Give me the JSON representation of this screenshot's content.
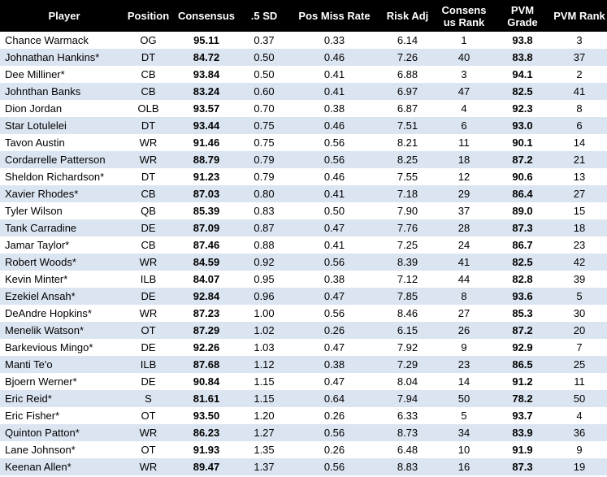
{
  "headers": {
    "player": "Player",
    "position": "Position",
    "consensus": "Consensus",
    "sd": ".5 SD",
    "pos_miss_rate": "Pos Miss Rate",
    "risk_adj": "Risk Adj",
    "consensus_rank_line1": "Consens",
    "consensus_rank_line2": "us Rank",
    "pvm_grade_line1": "PVM",
    "pvm_grade_line2": "Grade",
    "pvm_rank": "PVM Rank"
  },
  "rows": [
    {
      "player": "Chance Warmack",
      "position": "OG",
      "consensus": "95.11",
      "sd": "0.37",
      "pos_miss_rate": "0.33",
      "risk_adj": "6.14",
      "consensus_rank": "1",
      "pvm_grade": "93.8",
      "pvm_rank": "3"
    },
    {
      "player": "Johnathan Hankins*",
      "position": "DT",
      "consensus": "84.72",
      "sd": "0.50",
      "pos_miss_rate": "0.46",
      "risk_adj": "7.26",
      "consensus_rank": "40",
      "pvm_grade": "83.8",
      "pvm_rank": "37"
    },
    {
      "player": "Dee Milliner*",
      "position": "CB",
      "consensus": "93.84",
      "sd": "0.50",
      "pos_miss_rate": "0.41",
      "risk_adj": "6.88",
      "consensus_rank": "3",
      "pvm_grade": "94.1",
      "pvm_rank": "2"
    },
    {
      "player": "Johnthan Banks",
      "position": "CB",
      "consensus": "83.24",
      "sd": "0.60",
      "pos_miss_rate": "0.41",
      "risk_adj": "6.97",
      "consensus_rank": "47",
      "pvm_grade": "82.5",
      "pvm_rank": "41"
    },
    {
      "player": "Dion Jordan",
      "position": "OLB",
      "consensus": "93.57",
      "sd": "0.70",
      "pos_miss_rate": "0.38",
      "risk_adj": "6.87",
      "consensus_rank": "4",
      "pvm_grade": "92.3",
      "pvm_rank": "8"
    },
    {
      "player": "Star Lotulelei",
      "position": "DT",
      "consensus": "93.44",
      "sd": "0.75",
      "pos_miss_rate": "0.46",
      "risk_adj": "7.51",
      "consensus_rank": "6",
      "pvm_grade": "93.0",
      "pvm_rank": "6"
    },
    {
      "player": "Tavon Austin",
      "position": "WR",
      "consensus": "91.46",
      "sd": "0.75",
      "pos_miss_rate": "0.56",
      "risk_adj": "8.21",
      "consensus_rank": "11",
      "pvm_grade": "90.1",
      "pvm_rank": "14"
    },
    {
      "player": "Cordarrelle Patterson",
      "position": "WR",
      "consensus": "88.79",
      "sd": "0.79",
      "pos_miss_rate": "0.56",
      "risk_adj": "8.25",
      "consensus_rank": "18",
      "pvm_grade": "87.2",
      "pvm_rank": "21"
    },
    {
      "player": "Sheldon Richardson*",
      "position": "DT",
      "consensus": "91.23",
      "sd": "0.79",
      "pos_miss_rate": "0.46",
      "risk_adj": "7.55",
      "consensus_rank": "12",
      "pvm_grade": "90.6",
      "pvm_rank": "13"
    },
    {
      "player": "Xavier Rhodes*",
      "position": "CB",
      "consensus": "87.03",
      "sd": "0.80",
      "pos_miss_rate": "0.41",
      "risk_adj": "7.18",
      "consensus_rank": "29",
      "pvm_grade": "86.4",
      "pvm_rank": "27"
    },
    {
      "player": "Tyler Wilson",
      "position": "QB",
      "consensus": "85.39",
      "sd": "0.83",
      "pos_miss_rate": "0.50",
      "risk_adj": "7.90",
      "consensus_rank": "37",
      "pvm_grade": "89.0",
      "pvm_rank": "15"
    },
    {
      "player": "Tank Carradine",
      "position": "DE",
      "consensus": "87.09",
      "sd": "0.87",
      "pos_miss_rate": "0.47",
      "risk_adj": "7.76",
      "consensus_rank": "28",
      "pvm_grade": "87.3",
      "pvm_rank": "18"
    },
    {
      "player": "Jamar Taylor*",
      "position": "CB",
      "consensus": "87.46",
      "sd": "0.88",
      "pos_miss_rate": "0.41",
      "risk_adj": "7.25",
      "consensus_rank": "24",
      "pvm_grade": "86.7",
      "pvm_rank": "23"
    },
    {
      "player": "Robert Woods*",
      "position": "WR",
      "consensus": "84.59",
      "sd": "0.92",
      "pos_miss_rate": "0.56",
      "risk_adj": "8.39",
      "consensus_rank": "41",
      "pvm_grade": "82.5",
      "pvm_rank": "42"
    },
    {
      "player": "Kevin Minter*",
      "position": "ILB",
      "consensus": "84.07",
      "sd": "0.95",
      "pos_miss_rate": "0.38",
      "risk_adj": "7.12",
      "consensus_rank": "44",
      "pvm_grade": "82.8",
      "pvm_rank": "39"
    },
    {
      "player": "Ezekiel Ansah*",
      "position": "DE",
      "consensus": "92.84",
      "sd": "0.96",
      "pos_miss_rate": "0.47",
      "risk_adj": "7.85",
      "consensus_rank": "8",
      "pvm_grade": "93.6",
      "pvm_rank": "5"
    },
    {
      "player": "DeAndre Hopkins*",
      "position": "WR",
      "consensus": "87.23",
      "sd": "1.00",
      "pos_miss_rate": "0.56",
      "risk_adj": "8.46",
      "consensus_rank": "27",
      "pvm_grade": "85.3",
      "pvm_rank": "30"
    },
    {
      "player": "Menelik Watson*",
      "position": "OT",
      "consensus": "87.29",
      "sd": "1.02",
      "pos_miss_rate": "0.26",
      "risk_adj": "6.15",
      "consensus_rank": "26",
      "pvm_grade": "87.2",
      "pvm_rank": "20"
    },
    {
      "player": "Barkevious Mingo*",
      "position": "DE",
      "consensus": "92.26",
      "sd": "1.03",
      "pos_miss_rate": "0.47",
      "risk_adj": "7.92",
      "consensus_rank": "9",
      "pvm_grade": "92.9",
      "pvm_rank": "7"
    },
    {
      "player": "Manti Te'o",
      "position": "ILB",
      "consensus": "87.68",
      "sd": "1.12",
      "pos_miss_rate": "0.38",
      "risk_adj": "7.29",
      "consensus_rank": "23",
      "pvm_grade": "86.5",
      "pvm_rank": "25"
    },
    {
      "player": "Bjoern Werner*",
      "position": "DE",
      "consensus": "90.84",
      "sd": "1.15",
      "pos_miss_rate": "0.47",
      "risk_adj": "8.04",
      "consensus_rank": "14",
      "pvm_grade": "91.2",
      "pvm_rank": "11"
    },
    {
      "player": "Eric Reid*",
      "position": "S",
      "consensus": "81.61",
      "sd": "1.15",
      "pos_miss_rate": "0.64",
      "risk_adj": "7.94",
      "consensus_rank": "50",
      "pvm_grade": "78.2",
      "pvm_rank": "50"
    },
    {
      "player": "Eric Fisher*",
      "position": "OT",
      "consensus": "93.50",
      "sd": "1.20",
      "pos_miss_rate": "0.26",
      "risk_adj": "6.33",
      "consensus_rank": "5",
      "pvm_grade": "93.7",
      "pvm_rank": "4"
    },
    {
      "player": "Quinton Patton*",
      "position": "WR",
      "consensus": "86.23",
      "sd": "1.27",
      "pos_miss_rate": "0.56",
      "risk_adj": "8.73",
      "consensus_rank": "34",
      "pvm_grade": "83.9",
      "pvm_rank": "36"
    },
    {
      "player": "Lane Johnson*",
      "position": "OT",
      "consensus": "91.93",
      "sd": "1.35",
      "pos_miss_rate": "0.26",
      "risk_adj": "6.48",
      "consensus_rank": "10",
      "pvm_grade": "91.9",
      "pvm_rank": "9"
    },
    {
      "player": "Keenan Allen*",
      "position": "WR",
      "consensus": "89.47",
      "sd": "1.37",
      "pos_miss_rate": "0.56",
      "risk_adj": "8.83",
      "consensus_rank": "16",
      "pvm_grade": "87.3",
      "pvm_rank": "19"
    }
  ]
}
